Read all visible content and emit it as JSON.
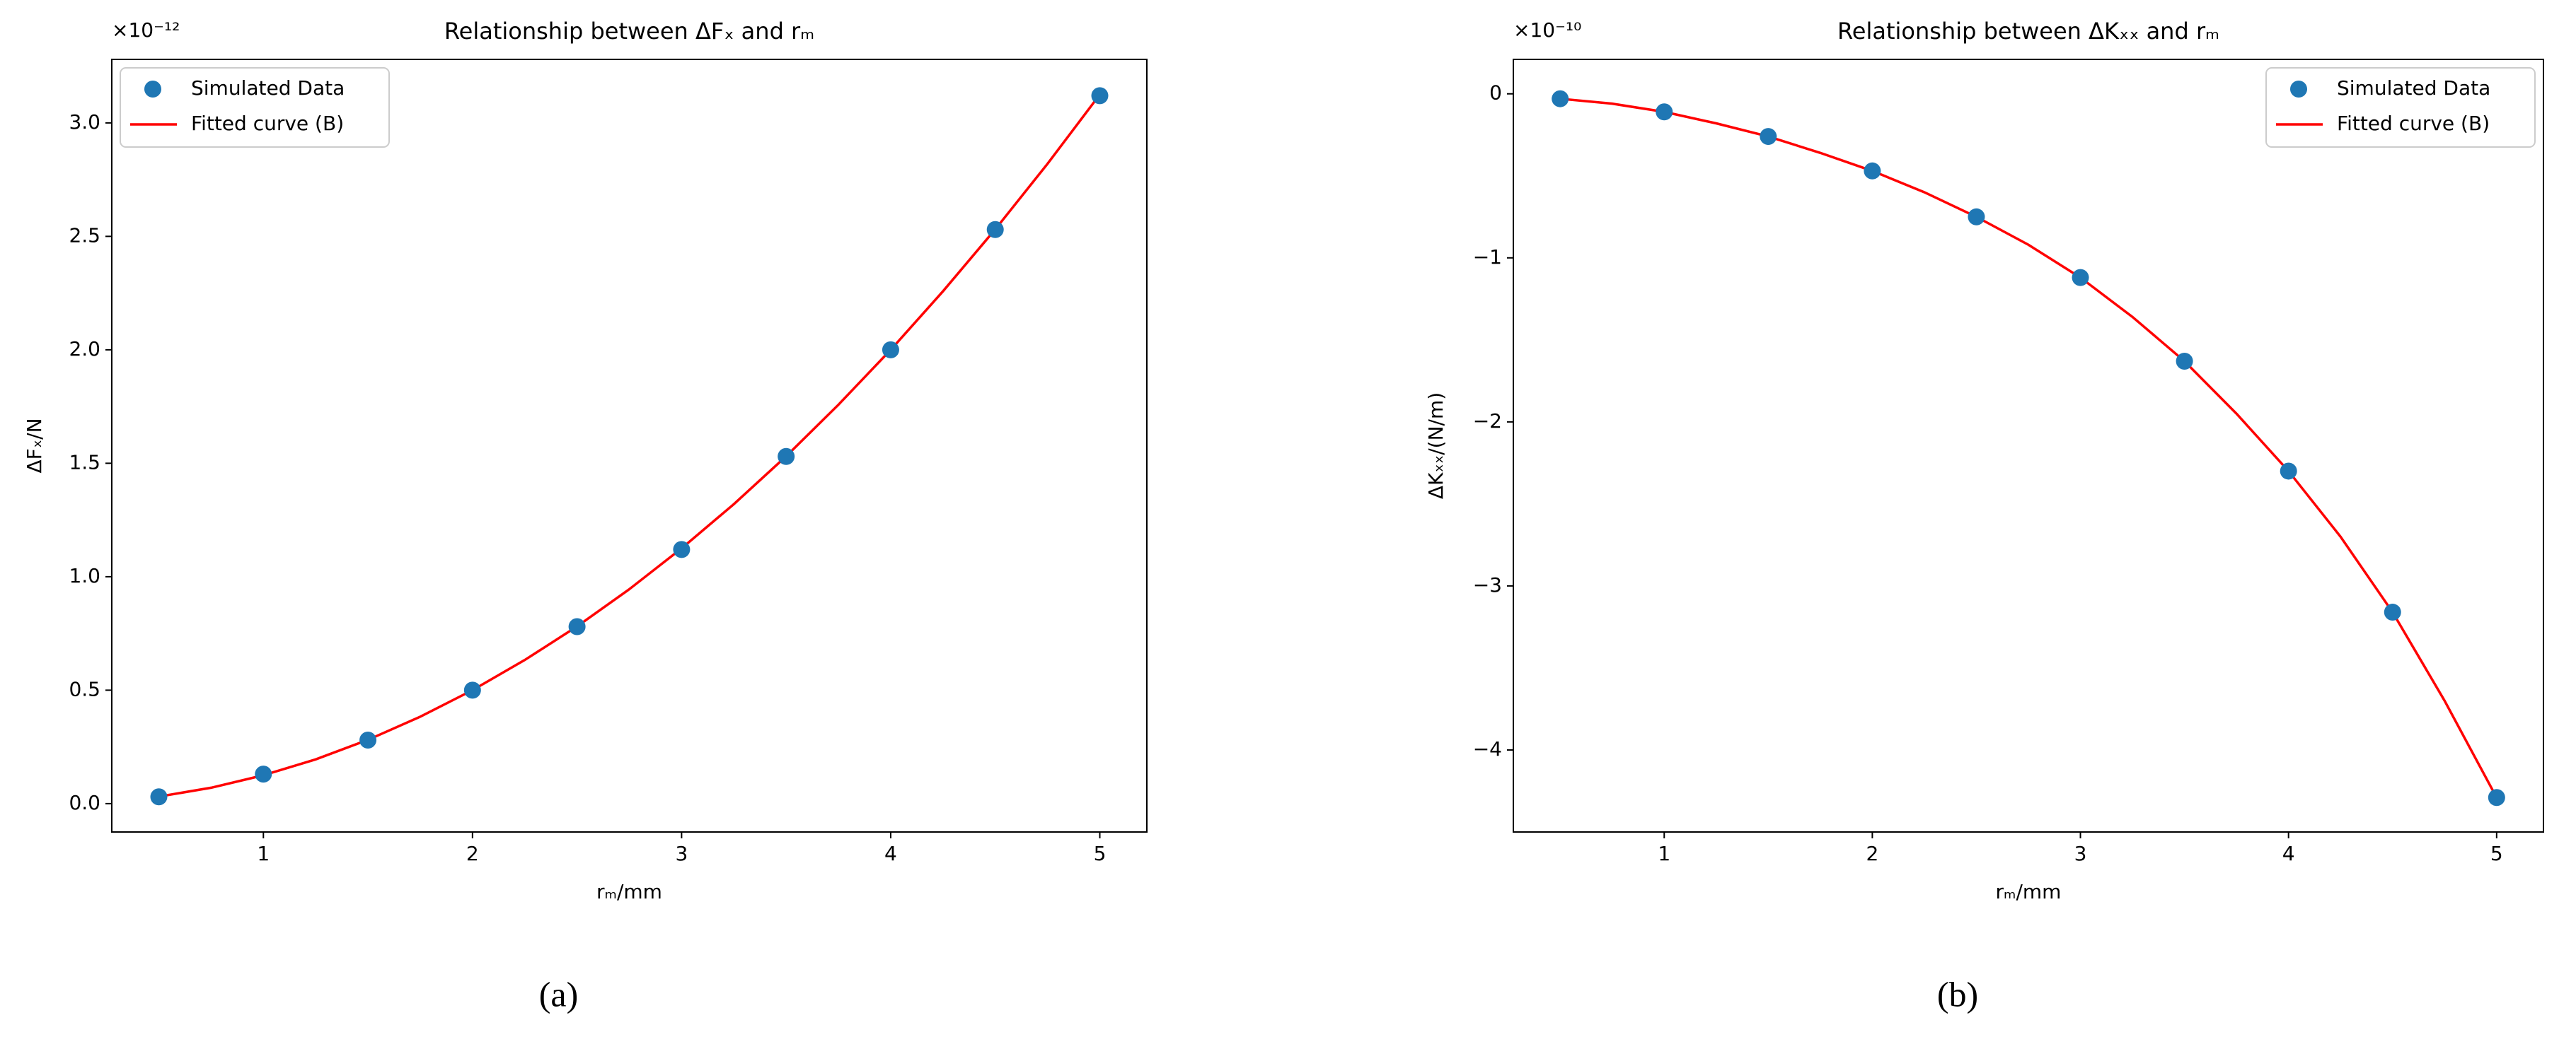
{
  "chart_data": [
    {
      "type": "scatter",
      "title": "Relationship between ΔFₓ and rₘ",
      "x_label": "rₘ/mm",
      "y_label": "ΔFₓ/N",
      "offset_text": "×10⁻¹²",
      "caption": "(a)",
      "legend": "upper left",
      "grid": false,
      "xlim": [
        0.275,
        5.225
      ],
      "xticks": [
        1,
        2,
        3,
        4,
        5
      ],
      "ylim": [
        -0.125,
        3.28
      ],
      "yticks": [
        {
          "value": 0,
          "label": "0.0"
        },
        0.5,
        {
          "value": 1,
          "label": "1.0"
        },
        1.5,
        {
          "value": 2,
          "label": "2.0"
        },
        2.5,
        {
          "value": 3,
          "label": "3.0"
        }
      ],
      "series": [
        {
          "name": "Simulated Data",
          "mode": "markers",
          "color": "#1f77b4",
          "x": [
            0.5,
            1,
            1.5,
            2,
            2.5,
            3,
            3.5,
            4,
            4.5,
            5
          ],
          "values": [
            0.03,
            0.13,
            0.28,
            0.5,
            0.78,
            1.12,
            1.53,
            2.0,
            2.53,
            3.12
          ]
        },
        {
          "name": "Fitted curve (B)",
          "mode": "line",
          "color": "#ff0000",
          "x": [
            0.5,
            0.75,
            1,
            1.25,
            1.5,
            1.75,
            2,
            2.25,
            2.5,
            2.75,
            3,
            3.25,
            3.5,
            3.75,
            4,
            4.25,
            4.5,
            4.75,
            5
          ],
          "values": [
            0.031,
            0.07,
            0.125,
            0.195,
            0.281,
            0.383,
            0.5,
            0.633,
            0.781,
            0.945,
            1.125,
            1.32,
            1.531,
            1.758,
            2.0,
            2.258,
            2.531,
            2.82,
            3.125
          ]
        }
      ]
    },
    {
      "type": "scatter",
      "title": "Relationship between ΔKₓₓ and rₘ",
      "x_label": "rₘ/mm",
      "y_label": "ΔKₓₓ/(N/m)",
      "offset_text": "×10⁻¹⁰",
      "caption": "(b)",
      "legend": "upper right",
      "grid": false,
      "xlim": [
        0.275,
        5.225
      ],
      "xticks": [
        1,
        2,
        3,
        4,
        5
      ],
      "ylim": [
        -4.5,
        0.21
      ],
      "yticks": [
        {
          "value": -4,
          "label": "−4"
        },
        {
          "value": -3,
          "label": "−3"
        },
        {
          "value": -2,
          "label": "−2"
        },
        {
          "value": -1,
          "label": "−1"
        },
        0
      ],
      "series": [
        {
          "name": "Simulated Data",
          "mode": "markers",
          "color": "#1f77b4",
          "x": [
            0.5,
            1,
            1.5,
            2,
            2.5,
            3,
            3.5,
            4,
            4.5,
            5
          ],
          "values": [
            -0.03,
            -0.11,
            -0.26,
            -0.47,
            -0.75,
            -1.12,
            -1.63,
            -2.3,
            -3.16,
            -4.29
          ]
        },
        {
          "name": "Fitted curve (B)",
          "mode": "line",
          "color": "#ff0000",
          "x": [
            0.5,
            0.75,
            1,
            1.25,
            1.5,
            1.75,
            2,
            2.25,
            2.5,
            2.75,
            3,
            3.25,
            3.5,
            3.75,
            4,
            4.25,
            4.5,
            4.75,
            5
          ],
          "values": [
            -0.03,
            -0.06,
            -0.11,
            -0.18,
            -0.26,
            -0.36,
            -0.47,
            -0.6,
            -0.75,
            -0.92,
            -1.12,
            -1.36,
            -1.63,
            -1.95,
            -2.3,
            -2.7,
            -3.16,
            -3.7,
            -4.29
          ]
        }
      ]
    }
  ]
}
